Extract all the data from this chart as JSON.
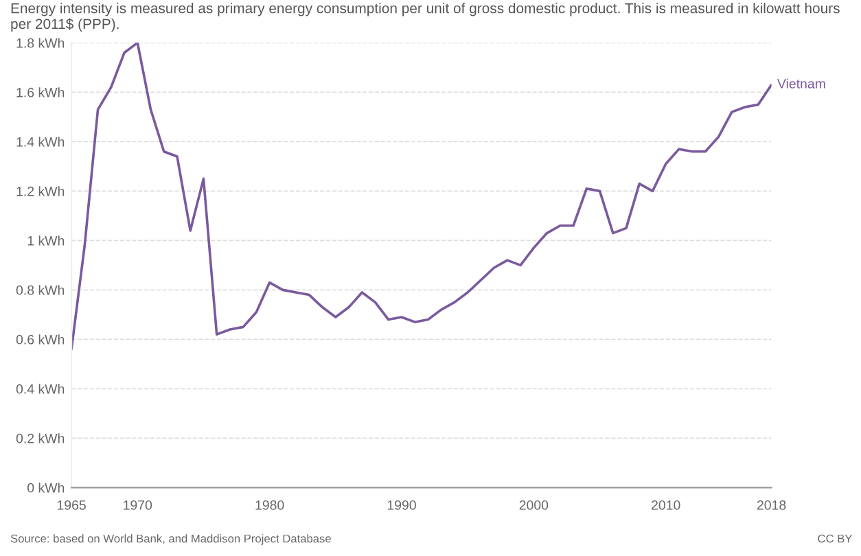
{
  "chart_data": {
    "type": "line",
    "subtitle": "Energy intensity is measured as primary energy consumption per unit of gross domestic product. This is measured in kilowatt hours per 2011$ (PPP).",
    "x": [
      1965,
      1966,
      1967,
      1968,
      1969,
      1970,
      1971,
      1972,
      1973,
      1974,
      1975,
      1976,
      1977,
      1978,
      1979,
      1980,
      1981,
      1982,
      1983,
      1984,
      1985,
      1986,
      1987,
      1988,
      1989,
      1990,
      1991,
      1992,
      1993,
      1994,
      1995,
      1996,
      1997,
      1998,
      1999,
      2000,
      2001,
      2002,
      2003,
      2004,
      2005,
      2006,
      2007,
      2008,
      2009,
      2010,
      2011,
      2012,
      2013,
      2014,
      2015,
      2016,
      2017,
      2018
    ],
    "series": [
      {
        "name": "Vietnam",
        "color": "#7a5a9e",
        "values": [
          0.56,
          0.98,
          1.53,
          1.62,
          1.76,
          1.8,
          1.53,
          1.36,
          1.34,
          1.04,
          1.25,
          0.62,
          0.64,
          0.65,
          0.71,
          0.83,
          0.8,
          0.79,
          0.78,
          0.73,
          0.69,
          0.73,
          0.79,
          0.75,
          0.68,
          0.69,
          0.67,
          0.68,
          0.72,
          0.75,
          0.79,
          0.84,
          0.89,
          0.92,
          0.9,
          0.97,
          1.03,
          1.06,
          1.06,
          1.21,
          1.2,
          1.03,
          1.05,
          1.23,
          1.2,
          1.31,
          1.37,
          1.36,
          1.36,
          1.42,
          1.52,
          1.54,
          1.55,
          1.63
        ]
      }
    ],
    "xlim": [
      1965,
      2018
    ],
    "xticks": [
      1965,
      1970,
      1980,
      1990,
      2000,
      2010,
      2018
    ],
    "ylim": [
      0,
      1.8
    ],
    "yticks": [
      {
        "value": 0,
        "label": "0 kWh"
      },
      {
        "value": 0.2,
        "label": "0.2 kWh"
      },
      {
        "value": 0.4,
        "label": "0.4 kWh"
      },
      {
        "value": 0.6,
        "label": "0.6 kWh"
      },
      {
        "value": 0.8,
        "label": "0.8 kWh"
      },
      {
        "value": 1,
        "label": "1 kWh"
      },
      {
        "value": 1.2,
        "label": "1.2 kWh"
      },
      {
        "value": 1.4,
        "label": "1.4 kWh"
      },
      {
        "value": 1.6,
        "label": "1.6 kWh"
      },
      {
        "value": 1.8,
        "label": "1.8 kWh"
      }
    ],
    "grid": "y",
    "line_style": "solid",
    "marker": "none",
    "legend": false,
    "annotations": [
      "Source: based on World Bank, and Maddison Project Database",
      "CC BY"
    ]
  }
}
